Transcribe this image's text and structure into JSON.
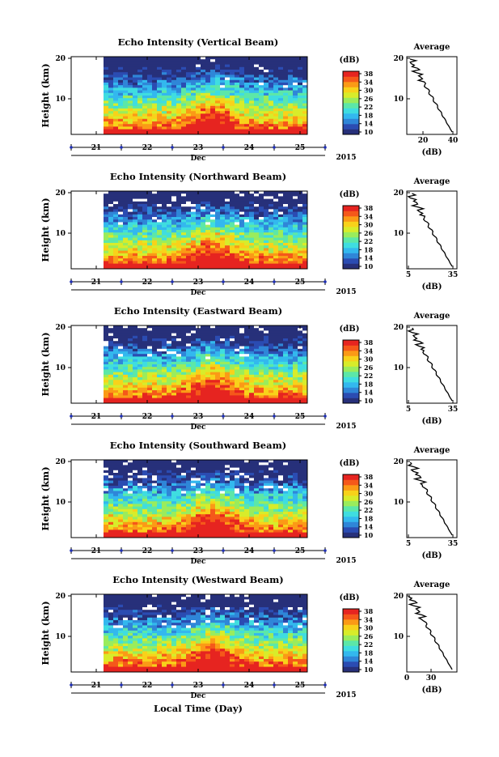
{
  "figure": {
    "footer_xlabel": "Local Time (Day)"
  },
  "panels": [
    {
      "title": "Echo Intensity (Vertical Beam)",
      "avg_xticks": [
        "20",
        "40"
      ]
    },
    {
      "title": "Echo Intensity (Northward Beam)",
      "avg_xticks": [
        "5",
        "35"
      ]
    },
    {
      "title": "Echo Intensity (Eastward Beam)",
      "avg_xticks": [
        "5",
        "35"
      ]
    },
    {
      "title": "Echo Intensity (Southward Beam)",
      "avg_xticks": [
        "5",
        "35"
      ]
    },
    {
      "title": "Echo Intensity (Westward Beam)",
      "avg_xticks": [
        "0",
        "30"
      ]
    }
  ],
  "chart_data": {
    "type": "heatmap",
    "ylabel": "Height (km)",
    "y_ticks": [
      "20",
      "10"
    ],
    "ylim_km": [
      1,
      20
    ],
    "x_ticks": [
      "21",
      "22",
      "23",
      "24",
      "25"
    ],
    "x_sublabel": "Dec",
    "x_year": "2015",
    "colorbar": {
      "unit": "(dB)",
      "tick_labels": [
        "38",
        "34",
        "30",
        "26",
        "22",
        "18",
        "14",
        "10"
      ],
      "range": [
        10,
        38
      ],
      "colors": [
        "#27307a",
        "#2b4cb2",
        "#2f86d8",
        "#33b8ee",
        "#3fdde0",
        "#5ce7a8",
        "#9aec5c",
        "#d8ec2a",
        "#f8d21a",
        "#fb9a16",
        "#f5581a",
        "#e62420"
      ]
    },
    "average_profile": {
      "title": "Average",
      "xlabel": "(dB)",
      "y_ticks": [
        "20",
        "10"
      ]
    }
  }
}
